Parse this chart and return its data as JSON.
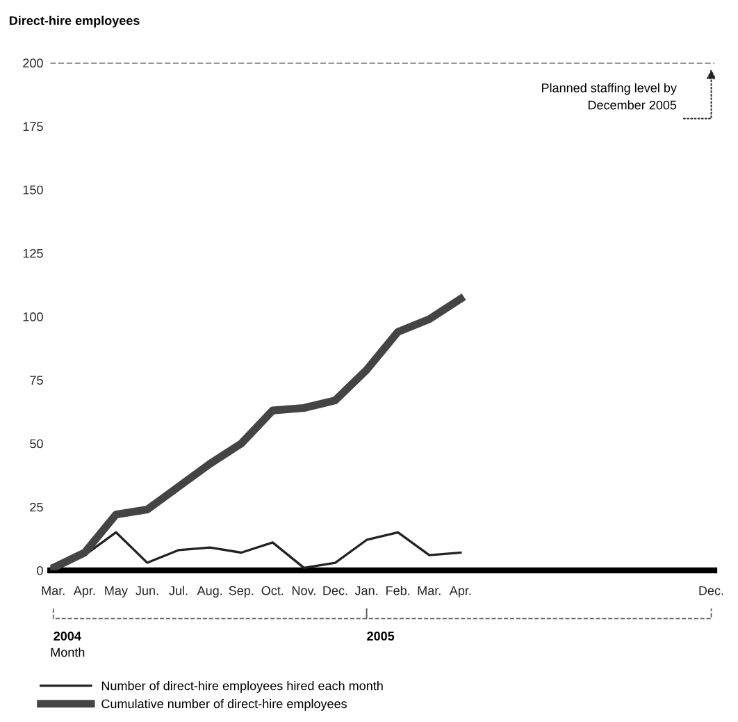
{
  "chart_data": {
    "type": "line",
    "ylabel": "Direct-hire employees",
    "xlabel": "Month",
    "categories": [
      "Mar.",
      "Apr.",
      "May",
      "Jun.",
      "Jul.",
      "Aug.",
      "Sep.",
      "Oct.",
      "Nov.",
      "Dec.",
      "Jan.",
      "Feb.",
      "Mar.",
      "Apr.",
      null,
      null,
      null,
      null,
      null,
      null,
      null,
      "Dec."
    ],
    "series": [
      {
        "name": "Number of direct-hire employees hired each month",
        "color": "#222222",
        "values": [
          1,
          6,
          15,
          3,
          8,
          9,
          7,
          11,
          1,
          3,
          12,
          15,
          6,
          7,
          null,
          null,
          null,
          null,
          null,
          null,
          null,
          null
        ]
      },
      {
        "name": "Cumulative number of direct-hire employees",
        "color": "#444444",
        "values": [
          1,
          7,
          22,
          24,
          33,
          42,
          50,
          63,
          64,
          67,
          79,
          94,
          99,
          107,
          null,
          null,
          null,
          null,
          null,
          null,
          null,
          null
        ]
      }
    ],
    "ylim": [
      0,
      200
    ],
    "yticks": [
      0,
      25,
      50,
      75,
      100,
      125,
      150,
      175,
      200
    ],
    "ref_lines": [
      {
        "axis": "y",
        "value": 200,
        "label": "Planned staffing level by\nDecember 2005",
        "color": "#444444",
        "line_style": "dashed"
      }
    ],
    "annotations": [
      "2004",
      "2005"
    ],
    "legend": "bottom",
    "grid": false
  }
}
